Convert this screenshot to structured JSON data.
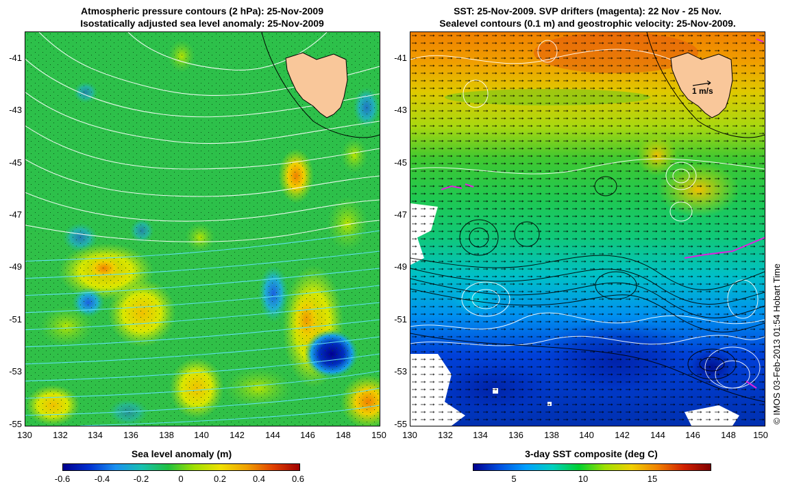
{
  "left_panel": {
    "title_line1": "Atmospheric pressure contours (2 hPa): 25-Nov-2009",
    "title_line2": "Isostatically adjusted sea level anomaly: 25-Nov-2009",
    "colorbar_title": "Sea level anomaly (m)",
    "colorbar_ticks": [
      "-0.6",
      "-0.4",
      "-0.2",
      "0",
      "0.2",
      "0.4",
      "0.6"
    ]
  },
  "right_panel": {
    "title_line1": "SST: 25-Nov-2009. SVP drifters (magenta): 22 Nov - 25 Nov.",
    "title_line2": "Sealevel contours (0.1 m) and geostrophic velocity: 25-Nov-2009.",
    "colorbar_title": "3-day SST composite (deg C)",
    "colorbar_ticks": [
      "5",
      "10",
      "15"
    ],
    "vector_scale_label": "1 m/s"
  },
  "axes": {
    "y_labels": [
      "-41",
      "-43",
      "-45",
      "-47",
      "-49",
      "-51",
      "-53",
      "-55"
    ],
    "x_labels": [
      "130",
      "132",
      "134",
      "136",
      "138",
      "140",
      "142",
      "144",
      "146",
      "148",
      "150"
    ]
  },
  "credit": "© IMOS 03-Feb-2013 01:54 Hobart Time",
  "colors": {
    "land": "#f9c79a",
    "ocean_mid": "#28c04a",
    "pressure_contours": "#ffffff",
    "drifters": "#e020e0",
    "sla_colormap": [
      "#00008f",
      "#0030d0",
      "#1aa0f0",
      "#18c0a0",
      "#20c040",
      "#a0e000",
      "#f0e000",
      "#f0a000",
      "#e04000",
      "#a00000"
    ],
    "sst_colormap": [
      "#00008f",
      "#0050e0",
      "#00a0ff",
      "#00d0c0",
      "#00d030",
      "#a0e000",
      "#f0d000",
      "#f08000",
      "#d02000",
      "#800000"
    ]
  }
}
